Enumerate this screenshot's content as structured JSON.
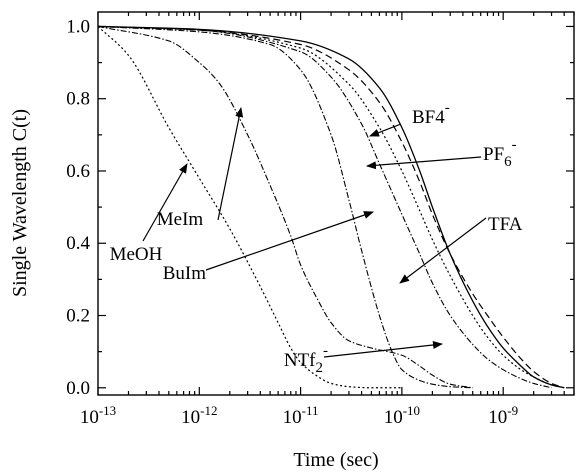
{
  "chart_data": {
    "type": "line",
    "xlabel": "Time (sec)",
    "ylabel": "Single Wavelength C(t)",
    "x_scale": "log",
    "xlim": [
      1e-13,
      5e-09
    ],
    "ylim": [
      -0.02,
      1.04
    ],
    "x_ticks": [
      {
        "value": 1e-13,
        "base": "10",
        "exp": "-13"
      },
      {
        "value": 1e-12,
        "base": "10",
        "exp": "-12"
      },
      {
        "value": 1e-11,
        "base": "10",
        "exp": "-11"
      },
      {
        "value": 1e-10,
        "base": "10",
        "exp": "-10"
      },
      {
        "value": 1e-09,
        "base": "10",
        "exp": "-9"
      }
    ],
    "y_ticks": [
      {
        "value": 0.0,
        "label": "0.0"
      },
      {
        "value": 0.2,
        "label": "0.2"
      },
      {
        "value": 0.4,
        "label": "0.4"
      },
      {
        "value": 0.6,
        "label": "0.6"
      },
      {
        "value": 0.8,
        "label": "0.8"
      },
      {
        "value": 1.0,
        "label": "1.0"
      }
    ],
    "grid": false,
    "series": [
      {
        "name": "BF4-",
        "style": "solid",
        "x": [
          1e-13,
          1e-12,
          1e-11,
          3e-11,
          6e-11,
          1e-10,
          1.5e-10,
          2e-10,
          3e-10,
          5e-10,
          7e-10,
          1e-09,
          1.5e-09,
          2e-09,
          3e-09,
          4e-09
        ],
        "y": [
          1.0,
          0.992,
          0.96,
          0.91,
          0.83,
          0.72,
          0.6,
          0.5,
          0.37,
          0.24,
          0.17,
          0.11,
          0.06,
          0.03,
          0.008,
          0.0
        ]
      },
      {
        "name": "PF6-",
        "style": "dash",
        "x": [
          1e-13,
          1e-12,
          1e-11,
          3e-11,
          6e-11,
          1e-10,
          1.5e-10,
          2e-10,
          3e-10,
          5e-10,
          7e-10,
          1e-09,
          1.5e-09,
          2e-09,
          3e-09,
          4e-09
        ],
        "y": [
          1.0,
          0.99,
          0.95,
          0.88,
          0.79,
          0.68,
          0.57,
          0.48,
          0.37,
          0.26,
          0.2,
          0.14,
          0.08,
          0.045,
          0.012,
          0.0
        ]
      },
      {
        "name": "TFA",
        "style": "dot",
        "x": [
          1e-13,
          1e-12,
          1e-11,
          3e-11,
          6e-11,
          1e-10,
          1.5e-10,
          2e-10,
          3e-10,
          5e-10,
          7e-10,
          1e-09,
          1.5e-09,
          2e-09,
          3e-09,
          4e-09
        ],
        "y": [
          1.0,
          0.99,
          0.94,
          0.84,
          0.72,
          0.6,
          0.49,
          0.41,
          0.31,
          0.2,
          0.14,
          0.09,
          0.05,
          0.03,
          0.008,
          0.0
        ]
      },
      {
        "name": "NTf2-",
        "style": "dashdot",
        "x": [
          1e-13,
          1e-12,
          1e-11,
          2e-11,
          4e-11,
          6e-11,
          1e-10,
          1.5e-10,
          2e-10,
          3e-10,
          5e-10,
          7e-10,
          1e-09,
          1.5e-09,
          2e-09,
          3e-09
        ],
        "y": [
          1.0,
          0.99,
          0.93,
          0.86,
          0.73,
          0.62,
          0.48,
          0.37,
          0.29,
          0.2,
          0.12,
          0.08,
          0.05,
          0.025,
          0.012,
          0.0
        ]
      },
      {
        "name": "BuIm",
        "style": "dashdot",
        "x": [
          1e-13,
          1e-12,
          5e-12,
          1e-11,
          2e-11,
          3e-11,
          4e-11,
          6e-11,
          8e-11,
          1e-10,
          1.5e-10,
          2e-10,
          3e-10,
          5e-10
        ],
        "y": [
          1.0,
          0.985,
          0.95,
          0.88,
          0.7,
          0.52,
          0.38,
          0.2,
          0.1,
          0.05,
          0.02,
          0.01,
          0.003,
          0.0
        ]
      },
      {
        "name": "MeIm",
        "style": "dashdot",
        "x": [
          1e-13,
          5e-13,
          1e-12,
          1.6e-12,
          3e-12,
          5e-12,
          8e-12,
          1e-11,
          1.5e-11,
          2e-11,
          3e-11,
          5e-11,
          1e-10,
          1.5e-10,
          2e-10,
          3e-10,
          5e-10
        ],
        "y": [
          1.0,
          0.96,
          0.9,
          0.84,
          0.7,
          0.56,
          0.42,
          0.34,
          0.24,
          0.18,
          0.13,
          0.11,
          0.09,
          0.06,
          0.035,
          0.01,
          0.0
        ]
      },
      {
        "name": "MeOH",
        "style": "dot",
        "x": [
          1e-13,
          2e-13,
          5e-13,
          1e-12,
          2e-12,
          4e-12,
          6e-12,
          8e-12,
          1e-11,
          1.5e-11,
          2e-11,
          3e-11,
          5e-11,
          1e-10
        ],
        "y": [
          1.0,
          0.92,
          0.72,
          0.58,
          0.44,
          0.28,
          0.18,
          0.11,
          0.07,
          0.03,
          0.012,
          0.003,
          0.0,
          0.0
        ]
      }
    ],
    "annotations": [
      {
        "label": "BF4",
        "sub": "",
        "sup": "-",
        "series": "BF4-"
      },
      {
        "label": "PF",
        "sub": "6",
        "sup": "-",
        "series": "PF6-"
      },
      {
        "label": "TFA",
        "sub": "",
        "sup": "",
        "series": "TFA"
      },
      {
        "label": "NTf",
        "sub": "2",
        "sup": "-",
        "series": "NTf2-"
      },
      {
        "label": "BuIm",
        "sub": "",
        "sup": "",
        "series": "BuIm"
      },
      {
        "label": "MeIm",
        "sub": "",
        "sup": "",
        "series": "MeIm"
      },
      {
        "label": "MeOH",
        "sub": "",
        "sup": "",
        "series": "MeOH"
      }
    ]
  }
}
